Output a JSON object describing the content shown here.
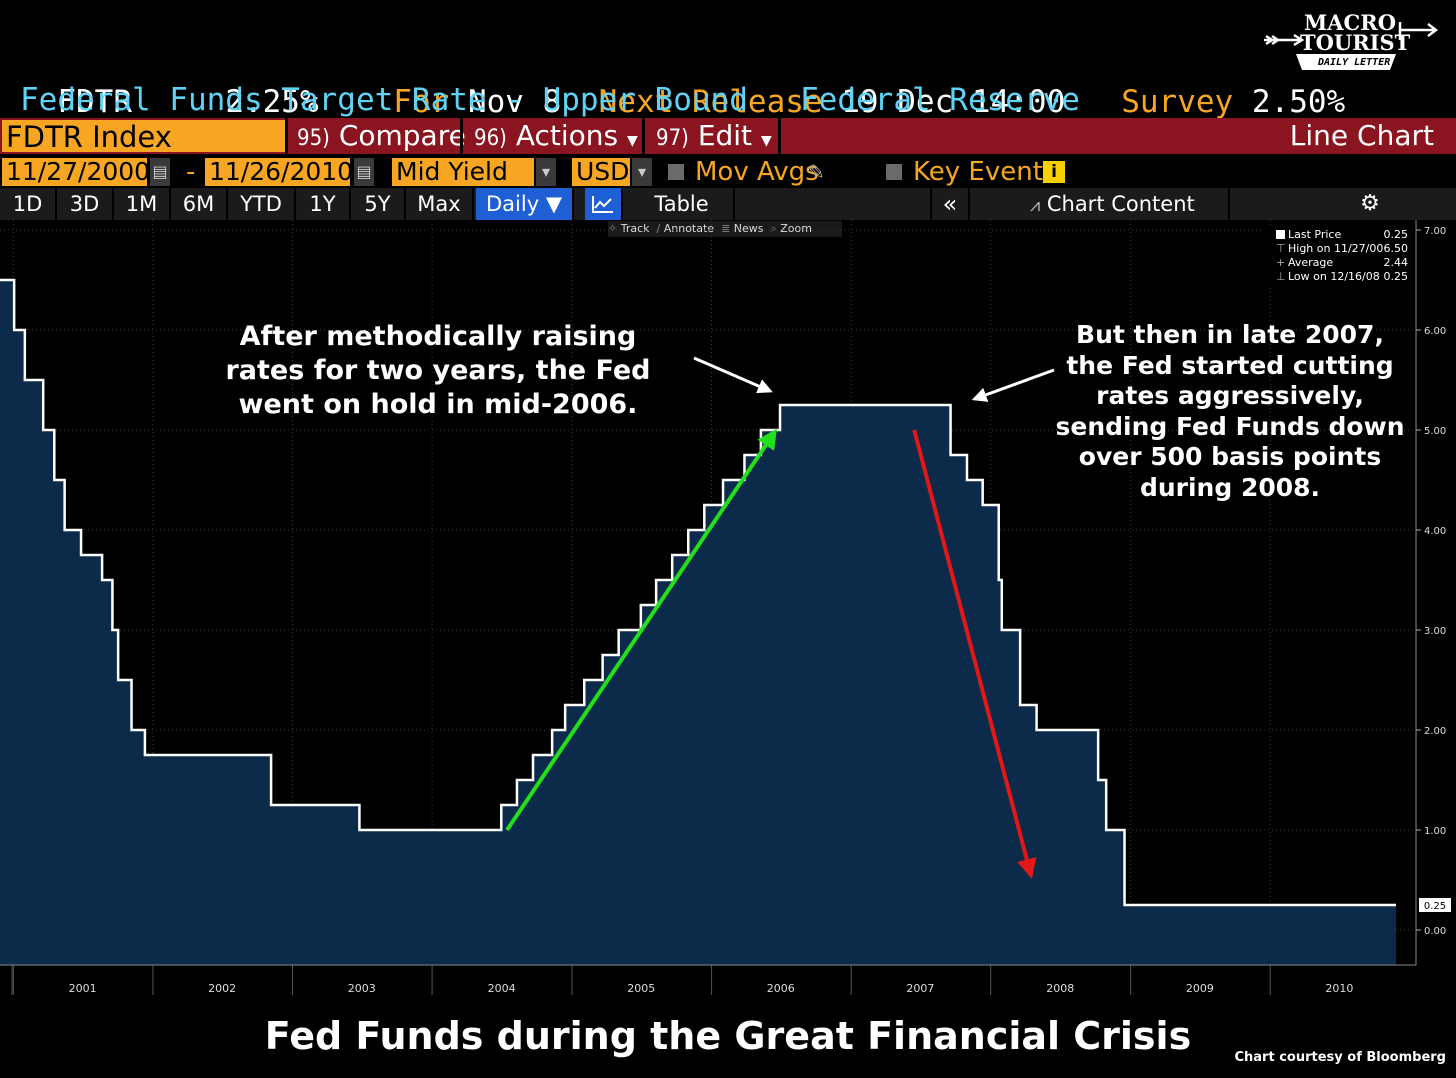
{
  "header": {
    "ticker": "FDTR",
    "last_value": "2.25%",
    "for_label": "For",
    "for_date": "Nov 8",
    "next_release_label": "Next Release",
    "next_release_value": "19 Dec 14:00",
    "survey_label": "Survey",
    "survey_value": "2.50%",
    "description": "Federal Funds Target Rate - Upper Bound",
    "source": "Federal Reserve"
  },
  "logo": {
    "line1": "MACRO",
    "line2": "TOURIST",
    "line3": "DAILY LETTER"
  },
  "toolbar": {
    "index_label": "FDTR Index",
    "compare_num": "95)",
    "compare_label": "Compare",
    "actions_num": "96)",
    "actions_label": "Actions",
    "edit_num": "97)",
    "edit_label": "Edit",
    "chart_type": "Line Chart"
  },
  "controls": {
    "start_date": "11/27/2000",
    "dash": "-",
    "end_date": "11/26/2010",
    "yield_type": "Mid Yield",
    "currency": "USD",
    "mov_avgs": "Mov Avgs",
    "key_events": "Key Events"
  },
  "periods": {
    "items": [
      "1D",
      "3D",
      "1M",
      "6M",
      "YTD",
      "1Y",
      "5Y",
      "Max"
    ],
    "frequency": "Daily",
    "table": "Table",
    "chart_content": "Chart Content"
  },
  "chart_tools": [
    "Track",
    "Annotate",
    "News",
    "Zoom"
  ],
  "legend": {
    "rows": [
      {
        "label": "Last Price",
        "value": "0.25"
      },
      {
        "label": "High on 11/27/00",
        "value": "6.50"
      },
      {
        "label": "Average",
        "value": "2.44"
      },
      {
        "label": "Low on 12/16/08",
        "value": "0.25"
      }
    ]
  },
  "annotations": {
    "left": [
      "After methodically raising",
      "rates for two years, the Fed",
      "went on hold in mid-2006."
    ],
    "right": [
      "But then in late 2007,",
      "the Fed started cutting",
      "rates aggressively,",
      "sending Fed Funds down",
      "over 500 basis points",
      "during 2008."
    ]
  },
  "footer": {
    "title": "Fed Funds during the Great Financial Crisis",
    "credit": "Chart courtesy of Bloomberg"
  },
  "colors": {
    "fill": "#0c2a4a",
    "line": "#ffffff",
    "up_arrow": "#22e01e",
    "down_arrow": "#e01818",
    "orange": "#f6a623",
    "cyan": "#5fd3f5",
    "toolbar_red": "#8a1520"
  },
  "chart_data": {
    "type": "area",
    "title": "",
    "xlabel": "",
    "ylabel": "",
    "xlim": [
      "2000-11-27",
      "2010-11-26"
    ],
    "ylim": [
      -0.35,
      7.0
    ],
    "y_ticks": [
      "0.00",
      "1.00",
      "2.00",
      "3.00",
      "4.00",
      "5.00",
      "6.00",
      "7.00"
    ],
    "x_ticks": [
      "2001",
      "2002",
      "2003",
      "2004",
      "2005",
      "2006",
      "2007",
      "2008",
      "2009",
      "2010"
    ],
    "last_value_label": "0.25",
    "grid": true,
    "legend_position": "top-right",
    "series": [
      {
        "name": "Last Price",
        "step": true,
        "points": [
          [
            "2000-11-27",
            6.5
          ],
          [
            "2001-01-03",
            6.0
          ],
          [
            "2001-01-31",
            5.5
          ],
          [
            "2001-03-20",
            5.0
          ],
          [
            "2001-04-18",
            4.5
          ],
          [
            "2001-05-15",
            4.0
          ],
          [
            "2001-06-27",
            3.75
          ],
          [
            "2001-08-21",
            3.5
          ],
          [
            "2001-09-17",
            3.0
          ],
          [
            "2001-10-02",
            2.5
          ],
          [
            "2001-11-06",
            2.0
          ],
          [
            "2001-12-11",
            1.75
          ],
          [
            "2002-11-06",
            1.25
          ],
          [
            "2003-06-25",
            1.0
          ],
          [
            "2004-06-30",
            1.25
          ],
          [
            "2004-08-10",
            1.5
          ],
          [
            "2004-09-21",
            1.75
          ],
          [
            "2004-11-10",
            2.0
          ],
          [
            "2004-12-14",
            2.25
          ],
          [
            "2005-02-02",
            2.5
          ],
          [
            "2005-03-22",
            2.75
          ],
          [
            "2005-05-03",
            3.0
          ],
          [
            "2005-06-30",
            3.25
          ],
          [
            "2005-08-09",
            3.5
          ],
          [
            "2005-09-20",
            3.75
          ],
          [
            "2005-11-01",
            4.0
          ],
          [
            "2005-12-13",
            4.25
          ],
          [
            "2006-01-31",
            4.5
          ],
          [
            "2006-03-28",
            4.75
          ],
          [
            "2006-05-10",
            5.0
          ],
          [
            "2006-06-29",
            5.25
          ],
          [
            "2007-09-18",
            4.75
          ],
          [
            "2007-10-31",
            4.5
          ],
          [
            "2007-12-11",
            4.25
          ],
          [
            "2008-01-22",
            3.5
          ],
          [
            "2008-01-30",
            3.0
          ],
          [
            "2008-03-18",
            2.25
          ],
          [
            "2008-04-30",
            2.0
          ],
          [
            "2008-10-08",
            1.5
          ],
          [
            "2008-10-29",
            1.0
          ],
          [
            "2008-12-16",
            0.25
          ],
          [
            "2010-11-26",
            0.25
          ]
        ]
      }
    ],
    "arrows": [
      {
        "name": "rising-trend",
        "from": [
          "2004-07-15",
          1.0
        ],
        "to": [
          "2006-06-15",
          4.98
        ]
      },
      {
        "name": "cutting-trend",
        "from": [
          "2007-06-15",
          5.0
        ],
        "to": [
          "2008-04-15",
          0.55
        ]
      }
    ]
  }
}
